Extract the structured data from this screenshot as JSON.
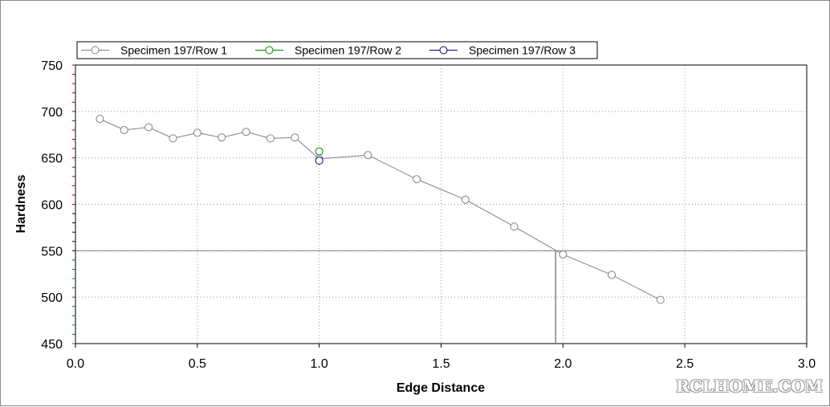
{
  "chart_data": {
    "type": "line",
    "xlabel": "Edge Distance",
    "ylabel": "Hardness",
    "xlim": [
      0.0,
      3.0
    ],
    "ylim": [
      450,
      750
    ],
    "xticks": [
      "0.0",
      "0.5",
      "1.0",
      "1.5",
      "2.0",
      "2.5",
      "3.0"
    ],
    "xtick_values": [
      0.0,
      0.5,
      1.0,
      1.5,
      2.0,
      2.5,
      3.0
    ],
    "yticks": [
      "450",
      "500",
      "550",
      "600",
      "650",
      "700",
      "750"
    ],
    "ytick_values": [
      450,
      500,
      550,
      600,
      650,
      700,
      750
    ],
    "grid": true,
    "legend_position": "top-left",
    "threshold": {
      "y": 550,
      "x": 1.97
    },
    "series": [
      {
        "name": "Specimen 197/Row 1",
        "color": "#808080",
        "x": [
          0.1,
          0.2,
          0.3,
          0.4,
          0.5,
          0.6,
          0.7,
          0.8,
          0.9,
          1.0,
          1.2,
          1.4,
          1.6,
          1.8,
          2.0,
          2.2,
          2.4
        ],
        "y": [
          692,
          680,
          683,
          671,
          677,
          672,
          678,
          671,
          672,
          649,
          653,
          627,
          605,
          576,
          546,
          524,
          497
        ]
      },
      {
        "name": "Specimen 197/Row 2",
        "color": "#008000",
        "x": [
          1.0
        ],
        "y": [
          657
        ]
      },
      {
        "name": "Specimen 197/Row 3",
        "color": "#000080",
        "x": [
          1.0
        ],
        "y": [
          647
        ]
      }
    ]
  },
  "watermark": "RCLHOME.COM"
}
